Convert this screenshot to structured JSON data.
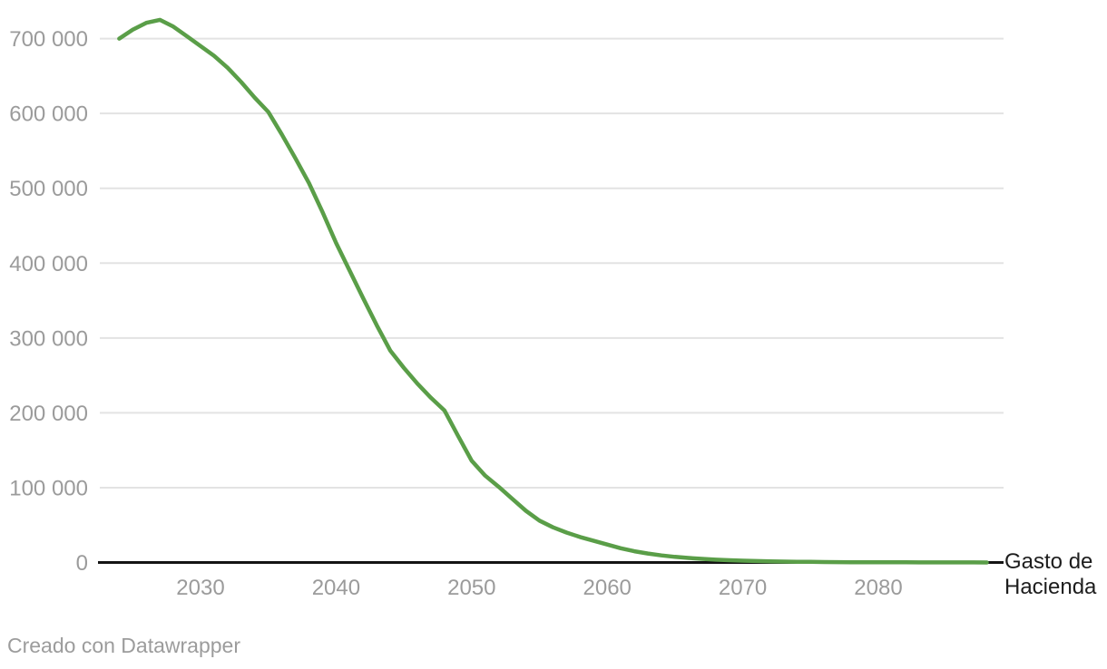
{
  "chart_data": {
    "type": "line",
    "title": "",
    "xlabel": "",
    "ylabel": "",
    "grid": "horizontal-only",
    "legend_position": "end-of-line-label",
    "series_label_display": "Gasto de Hacienda",
    "line_color": "#5a9e48",
    "axis_color": "#141414",
    "grid_color": "#e3e3e3",
    "tick_label_color": "#9b9b9b",
    "series_label_color": "#1d1d1d",
    "ylim": [
      0,
      725000
    ],
    "x_range": [
      2024,
      2088
    ],
    "yticks": [
      {
        "value": 0,
        "label": "0"
      },
      {
        "value": 100000,
        "label": "100 000"
      },
      {
        "value": 200000,
        "label": "200 000"
      },
      {
        "value": 300000,
        "label": "300 000"
      },
      {
        "value": 400000,
        "label": "400 000"
      },
      {
        "value": 500000,
        "label": "500 000"
      },
      {
        "value": 600000,
        "label": "600 000"
      },
      {
        "value": 700000,
        "label": "700 000"
      }
    ],
    "xticks": [
      {
        "value": 2030,
        "label": "2030"
      },
      {
        "value": 2040,
        "label": "2040"
      },
      {
        "value": 2050,
        "label": "2050"
      },
      {
        "value": 2060,
        "label": "2060"
      },
      {
        "value": 2070,
        "label": "2070"
      },
      {
        "value": 2080,
        "label": "2080"
      }
    ],
    "series": [
      {
        "name": "Gasto de Hacienda",
        "x": [
          2024,
          2025,
          2026,
          2027,
          2028,
          2029,
          2030,
          2031,
          2032,
          2033,
          2034,
          2035,
          2036,
          2037,
          2038,
          2039,
          2040,
          2041,
          2042,
          2043,
          2044,
          2045,
          2046,
          2047,
          2048,
          2049,
          2050,
          2051,
          2052,
          2053,
          2054,
          2055,
          2056,
          2057,
          2058,
          2059,
          2060,
          2061,
          2062,
          2063,
          2064,
          2065,
          2066,
          2067,
          2068,
          2069,
          2070,
          2071,
          2072,
          2073,
          2074,
          2075,
          2076,
          2077,
          2078,
          2079,
          2080,
          2081,
          2082,
          2083,
          2084,
          2085,
          2086,
          2087,
          2088
        ],
        "values": [
          700000,
          712000,
          721000,
          725000,
          716000,
          703000,
          690000,
          677000,
          661000,
          642000,
          621000,
          602000,
          572000,
          540000,
          507000,
          468000,
          427000,
          390000,
          353000,
          317000,
          283000,
          260000,
          239000,
          220000,
          203000,
          169000,
          136000,
          116000,
          101000,
          85000,
          69000,
          56000,
          47000,
          40000,
          34000,
          29000,
          24000,
          19000,
          15000,
          12000,
          9500,
          7500,
          6000,
          4800,
          3800,
          3000,
          2400,
          1900,
          1500,
          1200,
          1000,
          800,
          650,
          520,
          420,
          350,
          290,
          240,
          200,
          160,
          130,
          110,
          90,
          70,
          60
        ]
      }
    ]
  },
  "footer": {
    "credit": "Creado con Datawrapper"
  }
}
